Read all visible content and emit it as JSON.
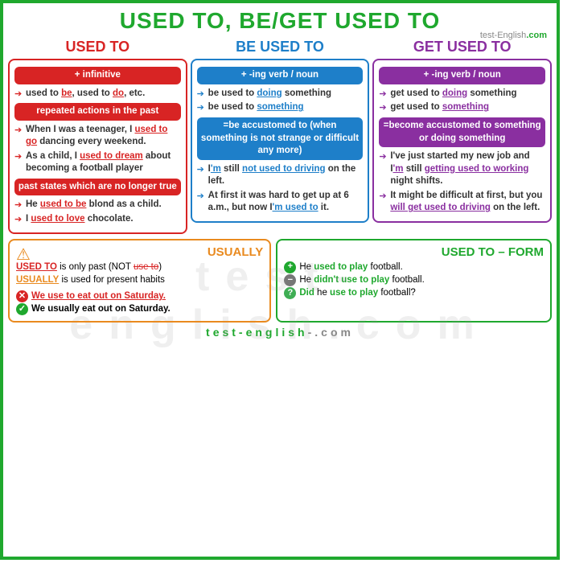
{
  "title": "USED TO, BE/GET USED TO",
  "brandPre": "test-English",
  "brandSuf": ".com",
  "watermark": "test-english.com",
  "columns": {
    "usedto": {
      "heading": "USED TO",
      "color": "red",
      "sections": [
        {
          "head": "+ infinitive",
          "items": [
            {
              "pre": "used to ",
              "u": "be",
              "mid": ", used to ",
              "u2": "do",
              "post": ", etc."
            }
          ]
        },
        {
          "head": "repeated actions in the past",
          "items": [
            {
              "pre": "When I was a teenager, I ",
              "u": "used to go",
              "post": " dancing every weekend."
            },
            {
              "pre": "As a child, I ",
              "u": "used to dream",
              "post": " about becoming a football player"
            }
          ]
        },
        {
          "head": "past states which are no longer true",
          "items": [
            {
              "pre": "He ",
              "u": "used to be",
              "post": " blond as a child."
            },
            {
              "pre": "I ",
              "u": "used to love",
              "post": " chocolate."
            }
          ]
        }
      ]
    },
    "beusedto": {
      "heading": "BE USED TO",
      "color": "blue",
      "sections": [
        {
          "head": "+ -ing verb / noun",
          "items": [
            {
              "pre": "be used to ",
              "u": "doing",
              "post": " something"
            },
            {
              "pre": "be used to ",
              "u": "something",
              "post": ""
            }
          ]
        },
        {
          "head": "=be accustomed to (when something is not strange or difficult any more)",
          "items": [
            {
              "pre": "I",
              "u": "'m",
              "mid": " still ",
              "u2": "not used to driving",
              "post": " on the left."
            },
            {
              "pre": "At first it was hard to get up at 6 a.m., but now I",
              "u": "'m used to",
              "post": " it."
            }
          ]
        }
      ]
    },
    "getusedto": {
      "heading": "GET USED TO",
      "color": "purple",
      "sections": [
        {
          "head": "+ -ing verb / noun",
          "items": [
            {
              "pre": "get used to ",
              "u": "doing",
              "post": " something"
            },
            {
              "pre": "get used to ",
              "u": "something",
              "post": ""
            }
          ]
        },
        {
          "head": "=become accustomed to something or doing something",
          "items": [
            {
              "pre": "I've just started my new job and I",
              "u": "'m",
              "mid": " still ",
              "u2": "getting used to working ",
              "post": "night shifts."
            },
            {
              "pre": "It might be difficult at first, but you ",
              "u": "will get used to driving",
              "post": " on the left."
            }
          ]
        }
      ]
    }
  },
  "usually": {
    "title": "USUALLY",
    "line1a": "USED TO",
    "line1b": " is only past (NOT ",
    "line1c": "use to",
    "line1d": ")",
    "line2a": "USUALLY",
    "line2b": " is used for present habits",
    "wrong": "We use to eat out on Saturday.",
    "right": "We usually eat out on Saturday."
  },
  "form": {
    "title": "USED TO – FORM",
    "pos1": "He ",
    "pos2": "used to play",
    "pos3": " football.",
    "neg1": "He ",
    "neg2": "didn't use to play",
    "neg3": " football.",
    "q1": "Did ",
    "q2": "he ",
    "q3": "use to play",
    "q4": " football?"
  },
  "footerText": "test-english",
  "footerDash": "-",
  "footerDom": ".com"
}
